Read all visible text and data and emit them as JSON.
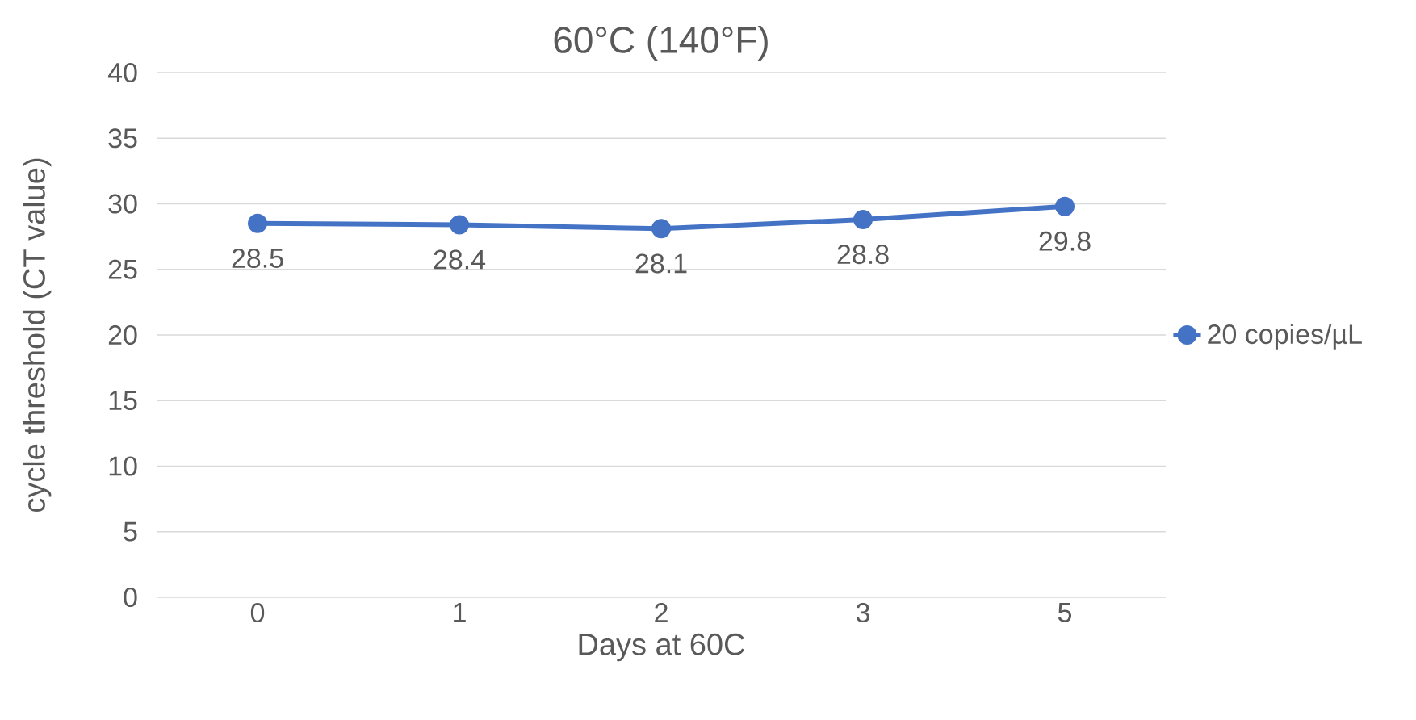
{
  "chart_data": {
    "type": "line",
    "title": "60°C (140°F)",
    "xlabel": "Days at 60C",
    "ylabel": "cycle threshold (CT value)",
    "categories": [
      "0",
      "1",
      "2",
      "3",
      "5"
    ],
    "series": [
      {
        "name": "20 copies/µL",
        "color": "#4472c4",
        "values": [
          28.5,
          28.4,
          28.1,
          28.8,
          29.8
        ]
      }
    ],
    "ylim": [
      0,
      40
    ],
    "yticks": [
      0,
      5,
      10,
      15,
      20,
      25,
      30,
      35,
      40
    ],
    "grid": "y",
    "legend": "right",
    "marker": "circle",
    "line_style": "solid",
    "data_labels": true
  }
}
